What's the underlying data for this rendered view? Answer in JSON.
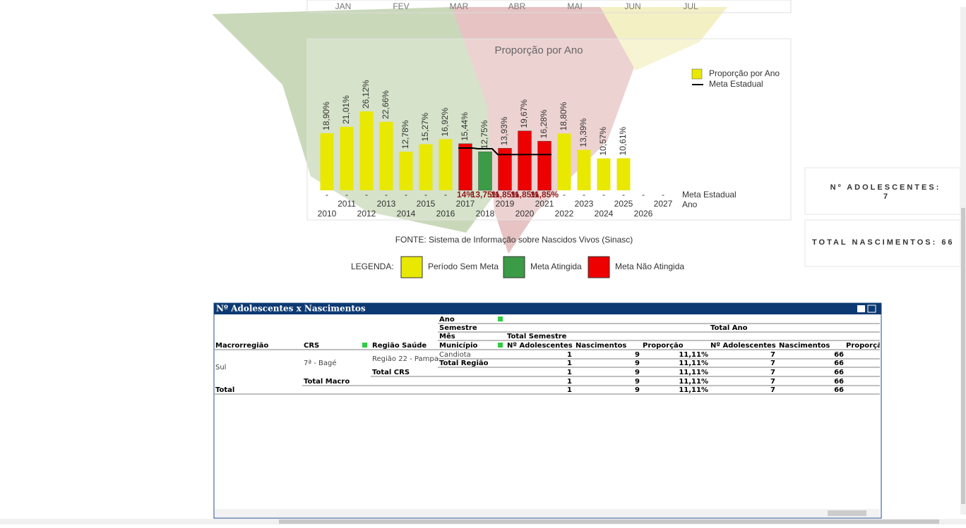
{
  "months": [
    "JAN",
    "FEV",
    "MAR",
    "ABR",
    "MAI",
    "JUN",
    "JUL"
  ],
  "chart_data": {
    "type": "bar",
    "title": "Proporção por Ano",
    "x_label": "Ano",
    "categories": [
      "2010",
      "2011",
      "2012",
      "2013",
      "2014",
      "2015",
      "2016",
      "2017",
      "2018",
      "2019",
      "2020",
      "2021",
      "2022",
      "2023",
      "2024",
      "2025",
      "2026",
      "2027"
    ],
    "series": [
      {
        "name": "Proporção por Ano",
        "color": "#e8e800",
        "values": [
          18.9,
          21.01,
          26.12,
          22.66,
          12.78,
          15.27,
          16.92,
          15.44,
          12.75,
          13.93,
          19.67,
          16.28,
          18.8,
          13.39,
          10.57,
          10.61,
          null,
          null
        ],
        "value_labels": [
          "18,90%",
          "21,01%",
          "26,12%",
          "22,66%",
          "12,78%",
          "15,27%",
          "16,92%",
          "15,44%",
          "12,75%",
          "13,93%",
          "19,67%",
          "16,28%",
          "18,80%",
          "13,39%",
          "10,57%",
          "10,61%",
          null,
          null
        ],
        "colors": [
          "#e8e800",
          "#e8e800",
          "#e8e800",
          "#e8e800",
          "#e8e800",
          "#e8e800",
          "#e8e800",
          "#ee0000",
          "#3c9b46",
          "#ee0000",
          "#ee0000",
          "#ee0000",
          "#e8e800",
          "#e8e800",
          "#e8e800",
          "#e8e800",
          null,
          null
        ]
      },
      {
        "name": "Meta Estadual",
        "color": "#000000",
        "values": [
          null,
          null,
          null,
          null,
          null,
          null,
          null,
          14,
          13.75,
          11.85,
          11.85,
          11.85,
          null,
          null,
          null,
          null,
          null,
          null
        ],
        "value_labels": [
          "-",
          "-",
          "-",
          "-",
          "-",
          "-",
          "-",
          "14%",
          "13,75%",
          "11,85%",
          "11,85%",
          "11,85%",
          "-",
          "-",
          "-",
          "-",
          "-",
          "-"
        ]
      }
    ],
    "source": "FONTE: Sistema de Informação sobre Nascidos Vivos (Sinasc)",
    "legend_title": "LEGENDA:",
    "legend_items": [
      {
        "label": "Período Sem Meta",
        "color": "#e8e800"
      },
      {
        "label": "Meta Atingida",
        "color": "#3c9b46"
      },
      {
        "label": "Meta Não Atingida",
        "color": "#ee0000"
      }
    ]
  },
  "kpis": [
    {
      "label": "Nº ADOLESCENTES:",
      "value": "7"
    },
    {
      "label": "TOTAL NASCIMENTOS:",
      "value": "66"
    }
  ],
  "table": {
    "title": "Nº Adolescentes x Nascimentos",
    "dim_rows": [
      [
        "Ano"
      ],
      [
        "Semestre",
        "Total Ano"
      ],
      [
        "Mês",
        "Total Semestre"
      ]
    ],
    "columns": [
      "Macrorregião",
      "CRS",
      "Região Saúde",
      "Município",
      "Nº Adolescentes",
      "Nascimentos",
      "Proporção",
      "Nº Adolescentes",
      "Nascimentos",
      "Proporção"
    ],
    "macro": "Sul",
    "crs": "7ª - Bagé",
    "regiao": "Região 22 - Pampa",
    "rows": [
      {
        "label": "Candiota",
        "values": [
          "1",
          "9",
          "11,11%",
          "7",
          "66"
        ]
      },
      {
        "label": "Total Região",
        "values": [
          "1",
          "9",
          "11,11%",
          "7",
          "66"
        ]
      },
      {
        "label": "Total CRS",
        "values": [
          "1",
          "9",
          "11,11%",
          "7",
          "66"
        ]
      },
      {
        "label": "Total Macro",
        "values": [
          "1",
          "9",
          "11,11%",
          "7",
          "66"
        ]
      },
      {
        "label": "Total",
        "values": [
          "1",
          "9",
          "11,11%",
          "7",
          "66"
        ]
      }
    ]
  }
}
